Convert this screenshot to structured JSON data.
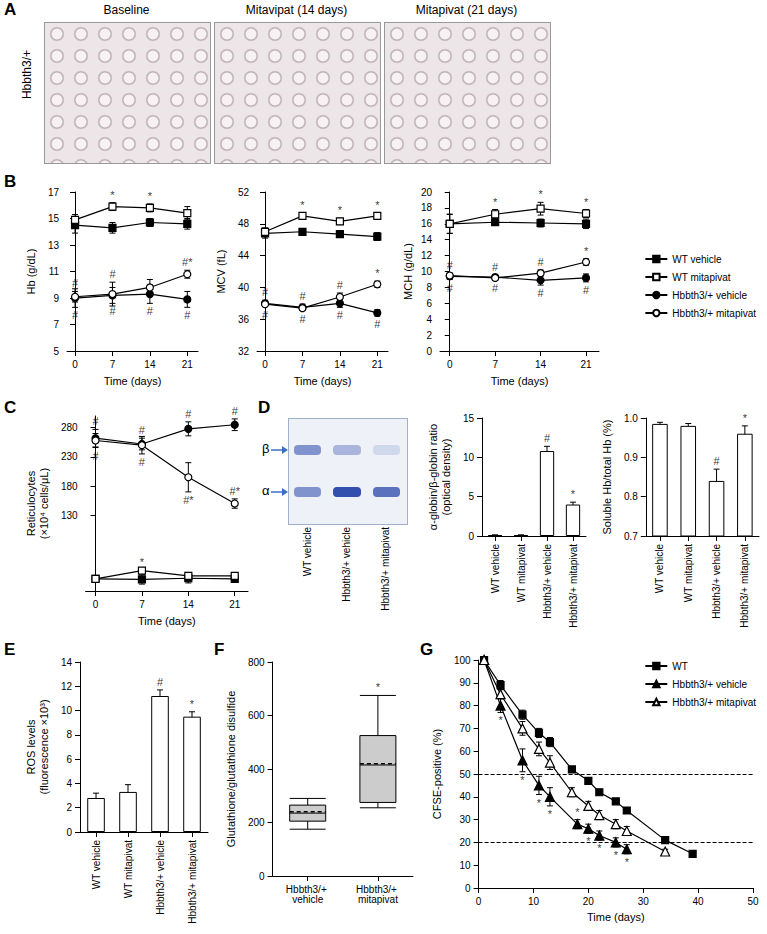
{
  "panel_a": {
    "label": "A",
    "row_label": "Hbbth3/+",
    "images": [
      "Baseline",
      "Mitavipat (14 days)",
      "Mitapivat (21 days)"
    ]
  },
  "panel_d_gel": {
    "label": "D",
    "bands": [
      "β",
      "α"
    ],
    "lanes": [
      "WT vehicle",
      "Hbbth3/+ vehicle",
      "Hbbth3/+ mitapivat"
    ]
  },
  "chart_data": [
    {
      "type": "line",
      "panel": "B",
      "x_label": "Time (days)",
      "y_label": "Hb (g/dL)",
      "xlim": [
        -1.5,
        23
      ],
      "xticks": [
        0,
        7,
        14,
        21
      ],
      "ylim": [
        5,
        17
      ],
      "yticks": [
        5,
        7,
        9,
        11,
        13,
        15,
        17
      ],
      "grid": false,
      "series": [
        {
          "name": "WT vehicle",
          "color": "#000000",
          "marker": "square",
          "x": [
            0,
            7,
            14,
            21
          ],
          "values": [
            14.5,
            14.3,
            14.7,
            14.6
          ],
          "errors": [
            0.6,
            0.4,
            0.3,
            0.4
          ],
          "annotations": [
            null,
            null,
            null,
            null
          ]
        },
        {
          "name": "WT mitapivat",
          "color": "#000000",
          "marker": "open-square",
          "x": [
            0,
            7,
            14,
            21
          ],
          "values": [
            14.9,
            15.9,
            15.8,
            15.4
          ],
          "errors": [
            0.4,
            0.3,
            0.3,
            0.5
          ],
          "annotations": [
            null,
            "*",
            "*",
            null
          ]
        },
        {
          "name": "Hbbth3/+ vehicle",
          "color": "#000000",
          "marker": "circle",
          "x": [
            0,
            7,
            14,
            21
          ],
          "values": [
            9.0,
            9.2,
            9.3,
            8.9
          ],
          "errors": [
            0.7,
            0.6,
            0.7,
            0.6
          ],
          "annotations": [
            "#",
            "#",
            "#",
            "#"
          ]
        },
        {
          "name": "Hbbth3/+ mitapivat",
          "color": "#000000",
          "marker": "open-circle",
          "x": [
            0,
            7,
            14,
            21
          ],
          "values": [
            9.1,
            9.3,
            9.8,
            10.8
          ],
          "errors": [
            0.4,
            0.9,
            0.6,
            0.3
          ],
          "annotations": [
            "#",
            "#",
            null,
            "#*"
          ]
        }
      ]
    },
    {
      "type": "line",
      "x_label": "Time (days)",
      "y_label": "MCV (fL)",
      "xlim": [
        -1.5,
        23
      ],
      "xticks": [
        0,
        7,
        14,
        21
      ],
      "ylim": [
        32,
        52
      ],
      "yticks": [
        32,
        36,
        40,
        44,
        48,
        52
      ],
      "grid": false,
      "series": [
        {
          "name": "WT vehicle",
          "color": "#000000",
          "marker": "square",
          "x": [
            0,
            7,
            14,
            21
          ],
          "values": [
            46.8,
            47.0,
            46.7,
            46.4
          ],
          "errors": [
            0.6,
            0.3,
            0.3,
            0.5
          ],
          "annotations": [
            null,
            null,
            null,
            null
          ]
        },
        {
          "name": "WT mitapivat",
          "color": "#000000",
          "marker": "open-square",
          "x": [
            0,
            7,
            14,
            21
          ],
          "values": [
            47.0,
            49.0,
            48.3,
            49.0
          ],
          "errors": [
            0.5,
            0.4,
            0.4,
            0.4
          ],
          "annotations": [
            null,
            "*",
            "*",
            "*"
          ]
        },
        {
          "name": "Hbbth3/+ vehicle",
          "color": "#000000",
          "marker": "circle",
          "x": [
            0,
            7,
            14,
            21
          ],
          "values": [
            38.0,
            37.5,
            38.0,
            36.8
          ],
          "errors": [
            0.4,
            0.4,
            0.5,
            0.4
          ],
          "annotations": [
            "#",
            "#",
            "#",
            "#"
          ]
        },
        {
          "name": "Hbbth3/+ mitapivat",
          "color": "#000000",
          "marker": "open-circle",
          "x": [
            0,
            7,
            14,
            21
          ],
          "values": [
            37.9,
            37.4,
            38.8,
            40.4
          ],
          "errors": [
            0.3,
            0.3,
            0.5,
            0.4
          ],
          "annotations": [
            "#",
            "#",
            "#",
            "*"
          ]
        }
      ]
    },
    {
      "type": "line",
      "x_label": "Time (days)",
      "y_label": "MCH (g/dL)",
      "legend": "right",
      "xlim": [
        -1.5,
        23
      ],
      "xticks": [
        0,
        7,
        14,
        21
      ],
      "ylim": [
        0,
        20
      ],
      "yticks": [
        0,
        2,
        4,
        6,
        8,
        10,
        12,
        14,
        16,
        18,
        20
      ],
      "grid": false,
      "series": [
        {
          "name": "WT vehicle",
          "color": "#000000",
          "marker": "square",
          "x": [
            0,
            7,
            14,
            21
          ],
          "values": [
            16.0,
            16.2,
            16.1,
            16.0
          ],
          "errors": [
            1.2,
            0.4,
            0.5,
            0.6
          ],
          "annotations": [
            null,
            null,
            null,
            null
          ]
        },
        {
          "name": "WT mitapivat",
          "color": "#000000",
          "marker": "open-square",
          "x": [
            0,
            7,
            14,
            21
          ],
          "values": [
            16.0,
            17.2,
            17.9,
            17.3
          ],
          "errors": [
            1.2,
            0.6,
            0.8,
            0.5
          ],
          "annotations": [
            null,
            "*",
            "*",
            "*"
          ]
        },
        {
          "name": "Hbbth3/+ vehicle",
          "color": "#000000",
          "marker": "circle",
          "x": [
            0,
            7,
            14,
            21
          ],
          "values": [
            9.4,
            9.3,
            8.9,
            9.2
          ],
          "errors": [
            0.4,
            0.3,
            0.6,
            0.5
          ],
          "annotations": [
            "#",
            "#",
            "#",
            "#"
          ]
        },
        {
          "name": "Hbbth3/+ mitapivat",
          "color": "#000000",
          "marker": "open-circle",
          "x": [
            0,
            7,
            14,
            21
          ],
          "values": [
            9.5,
            9.2,
            9.8,
            11.2
          ],
          "errors": [
            0.3,
            0.3,
            0.4,
            0.4
          ],
          "annotations": [
            "#",
            "#",
            "#",
            "*"
          ]
        }
      ]
    },
    {
      "type": "line",
      "panel": "C",
      "x_label": "Time (days)",
      "y_label": "Reticulocytes\n(×10⁴ cells/μL)",
      "xlim": [
        -1.5,
        23
      ],
      "xticks": [
        0,
        7,
        14,
        21
      ],
      "ylim": [
        0,
        300
      ],
      "yticks": [
        130,
        180,
        230,
        280
      ],
      "grid": false,
      "series": [
        {
          "name": "WT vehicle",
          "color": "#000000",
          "marker": "square",
          "x": [
            0,
            7,
            14,
            21
          ],
          "values": [
            21,
            20,
            22,
            21
          ],
          "errors": [
            2,
            8,
            8,
            4
          ],
          "annotations": [
            null,
            null,
            null,
            null
          ]
        },
        {
          "name": "WT mitapivat",
          "color": "#000000",
          "marker": "open-square",
          "x": [
            0,
            7,
            14,
            21
          ],
          "values": [
            21,
            35,
            26,
            26
          ],
          "errors": [
            2,
            2,
            2,
            2
          ],
          "annotations": [
            null,
            "*",
            null,
            null
          ]
        },
        {
          "name": "Hbbth3/+ vehicle",
          "color": "#000000",
          "marker": "circle",
          "x": [
            0,
            7,
            14,
            21
          ],
          "values": [
            262,
            252,
            278,
            285
          ],
          "errors": [
            15,
            10,
            12,
            10
          ],
          "annotations": [
            "#",
            "#",
            "#",
            "#"
          ]
        },
        {
          "name": "Hbbth3/+ mitapivat",
          "color": "#000000",
          "marker": "open-circle",
          "x": [
            0,
            7,
            14,
            21
          ],
          "values": [
            258,
            250,
            195,
            150
          ],
          "errors": [
            12,
            15,
            25,
            8
          ],
          "annotations": [
            "#",
            "#",
            "#*",
            "#*"
          ]
        }
      ]
    },
    {
      "type": "bar",
      "y_label": "α-globin/β-globin ratio\n(optical density)",
      "categories": [
        "WT vehicle",
        "WT mitapivat",
        "Hbbth3/+ vehicle",
        "Hbbth3/+ mitapivat"
      ],
      "values": [
        0.1,
        0.1,
        10.8,
        4.0
      ],
      "errors": [
        0.05,
        0.05,
        0.6,
        0.3
      ],
      "annotations": [
        null,
        null,
        "#",
        "*"
      ],
      "color": "#ffffff",
      "ylim": [
        0,
        15
      ],
      "yticks": [
        0,
        5,
        10,
        15
      ],
      "grid": false
    },
    {
      "type": "bar",
      "y_label": "Soluble Hb/total Hb (%)",
      "categories": [
        "WT vehicle",
        "WT mitapivat",
        "Hbbth3/+ vehicle",
        "Hbbth3/+ mitapivat"
      ],
      "values": [
        0.985,
        0.98,
        0.84,
        0.96
      ],
      "errors": [
        0.004,
        0.006,
        0.03,
        0.02
      ],
      "annotations": [
        null,
        null,
        "#",
        "*"
      ],
      "color": "#ffffff",
      "ylim": [
        0.7,
        1.0
      ],
      "yticks": [
        0.7,
        0.8,
        0.9,
        {
          "value": 1.0,
          "label": "1.0"
        }
      ],
      "grid": false
    },
    {
      "type": "bar",
      "panel": "E",
      "y_label": "ROS levels\n(fluorescence ×10³)",
      "categories": [
        "WT vehicle",
        "WT mitapivat",
        "Hbbth3/+ vehicle",
        "Hbbth3/+ mitapivat"
      ],
      "values": [
        2.8,
        3.3,
        11.2,
        9.5
      ],
      "errors": [
        0.4,
        0.6,
        0.5,
        0.4
      ],
      "annotations": [
        null,
        null,
        "#",
        "*"
      ],
      "color": "#ffffff",
      "ylim": [
        0,
        14
      ],
      "yticks": [
        0,
        2,
        4,
        6,
        8,
        10,
        12,
        14
      ],
      "grid": false
    },
    {
      "type": "boxplot",
      "panel": "F",
      "y_label": "Glutathione/glutathione disulfide",
      "categories": [
        "Hbbth3/+ vehicle",
        "Hbbth3/+ mitapivat"
      ],
      "boxes": [
        [
          175,
          205,
          235,
          265,
          290
        ],
        [
          255,
          275,
          415,
          525,
          675
        ]
      ],
      "means": [
        240,
        420
      ],
      "annotations": [
        null,
        "*"
      ],
      "color": "#cccccc",
      "ylim": [
        0,
        800
      ],
      "yticks": [
        0,
        200,
        400,
        600,
        800
      ],
      "grid": false
    },
    {
      "type": "line",
      "panel": "G",
      "x_label": "Time (days)",
      "y_label": "CFSE-positive (%)",
      "legend": "top-right",
      "xlim": [
        0,
        50
      ],
      "xticks": [
        0,
        10,
        20,
        30,
        40,
        50
      ],
      "ylim": [
        0,
        100
      ],
      "yticks": [
        0,
        10,
        20,
        30,
        40,
        50,
        60,
        70,
        80,
        90,
        100
      ],
      "grid": false,
      "reference_lines": [
        50,
        20
      ],
      "series": [
        {
          "name": "WT",
          "color": "#000000",
          "marker": "square",
          "x": [
            1,
            4,
            8,
            11,
            13,
            17,
            20,
            22,
            25,
            27,
            34,
            39
          ],
          "values": [
            100,
            89,
            76,
            68,
            64,
            52,
            47,
            42,
            38,
            34,
            21,
            15
          ],
          "errors": [
            0,
            2,
            2,
            2,
            2,
            1,
            1,
            1,
            1,
            1,
            1,
            1
          ]
        },
        {
          "name": "Hbbth3/+ vehicle",
          "color": "#000000",
          "marker": "triangle",
          "x": [
            1,
            4,
            8,
            11,
            13,
            18,
            20,
            22,
            25,
            27
          ],
          "values": [
            100,
            80,
            56,
            45,
            40,
            28,
            26,
            23,
            20,
            17
          ],
          "errors": [
            0,
            3,
            5,
            4,
            4,
            2,
            2,
            2,
            2,
            2
          ],
          "annotations": [
            null,
            "*",
            "*",
            "*",
            "*",
            "*",
            "*",
            "*",
            "*",
            "*"
          ]
        },
        {
          "name": "Hbbth3/+ mitapivat",
          "color": "#000000",
          "marker": "open-triangle",
          "x": [
            1,
            4,
            8,
            11,
            13,
            17,
            20,
            22,
            25,
            27,
            34
          ],
          "values": [
            100,
            85,
            70,
            61,
            55,
            42,
            36,
            32,
            28,
            25,
            16
          ],
          "errors": [
            0,
            2,
            3,
            3,
            3,
            2,
            2,
            2,
            2,
            2,
            1
          ]
        }
      ]
    }
  ]
}
